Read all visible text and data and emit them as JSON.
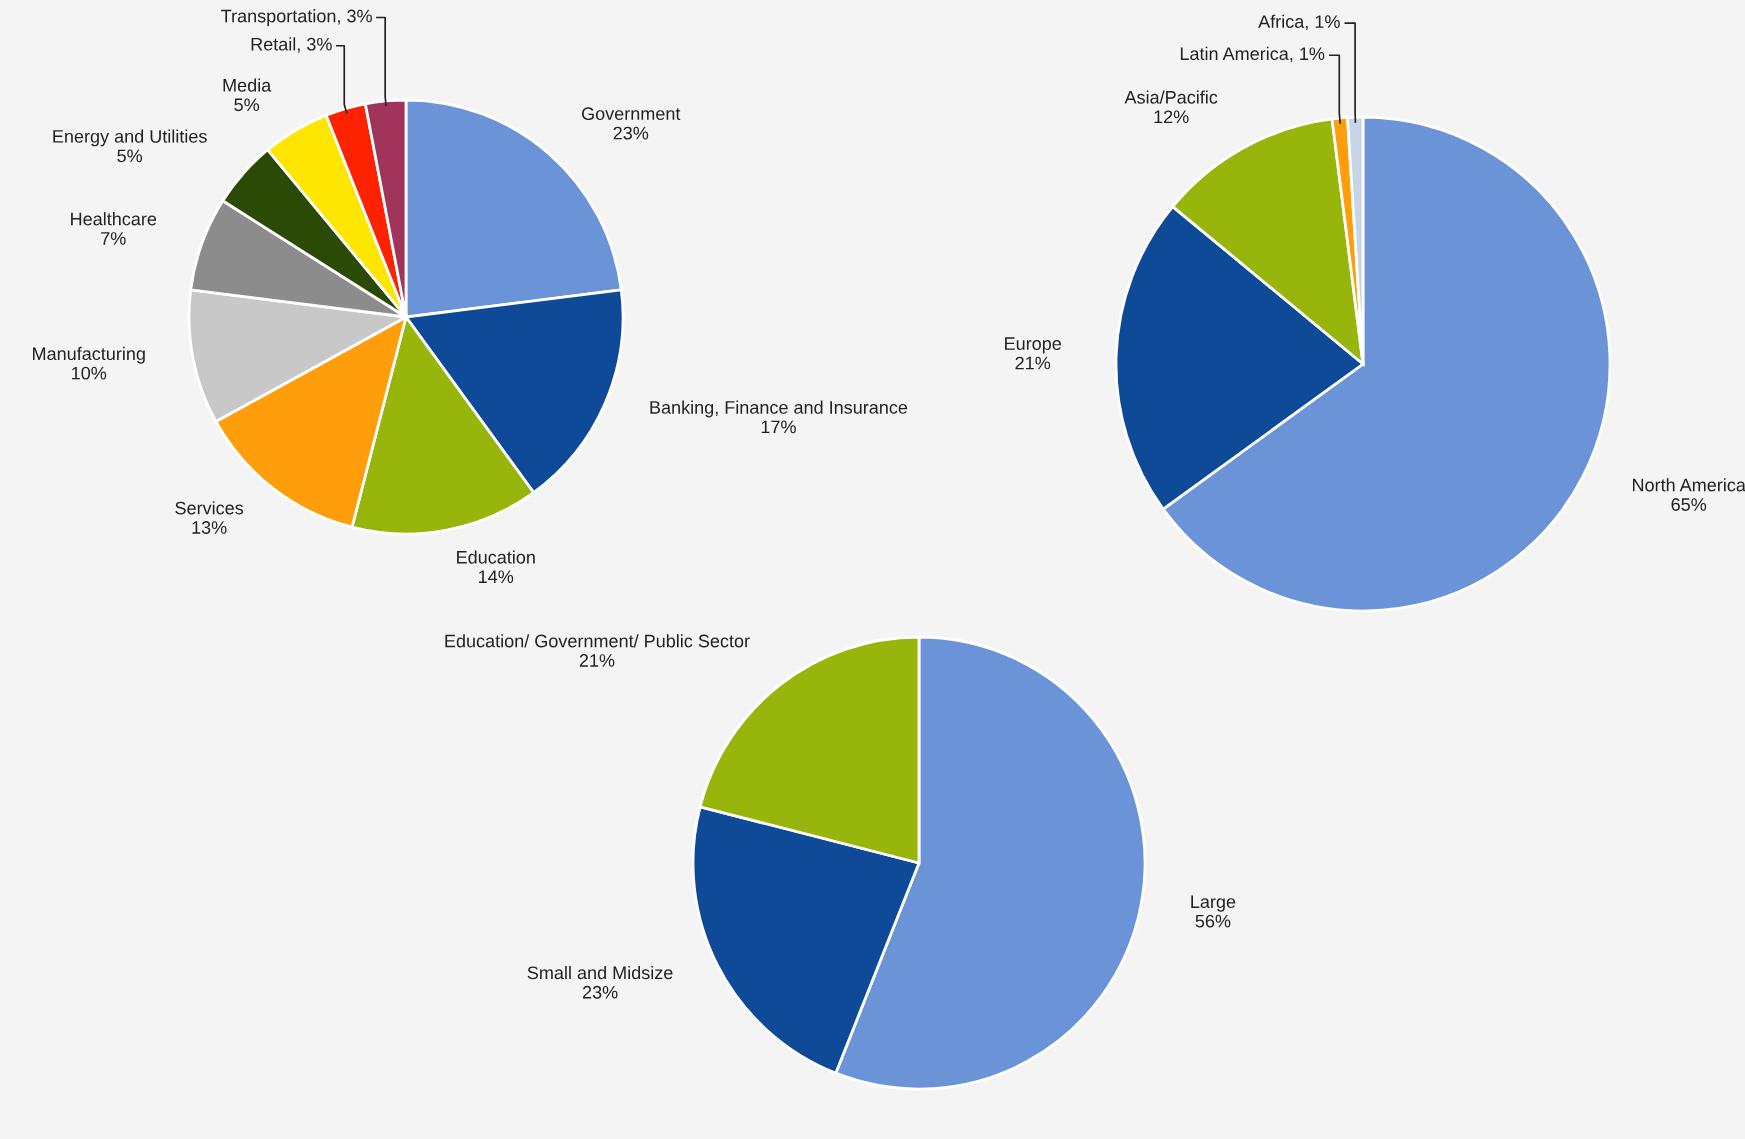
{
  "chart_data": [
    {
      "type": "pie",
      "categories": [
        "Government",
        "Banking, Finance and Insurance",
        "Education",
        "Services",
        "Manufacturing",
        "Healthcare",
        "Energy and Utilities",
        "Media",
        "Retail",
        "Transportation"
      ],
      "values": [
        23,
        17,
        14,
        13,
        10,
        7,
        5,
        5,
        3,
        3
      ],
      "value_labels": [
        "23%",
        "17%",
        "14%",
        "13%",
        "10%",
        "7%",
        "5%",
        "5%",
        "3%",
        "3%"
      ],
      "colors": [
        "#6a93d8",
        "#0e4a97",
        "#97b50a",
        "#ff9d0a",
        "#c8c8c8",
        "#8c8c8c",
        "#2b4a06",
        "#ffe600",
        "#ff2200",
        "#a0345a"
      ]
    },
    {
      "type": "pie",
      "categories": [
        "North America",
        "Europe",
        "Asia/Pacific",
        "Latin America",
        "Africa"
      ],
      "values": [
        65,
        21,
        12,
        1,
        1
      ],
      "value_labels": [
        "65%",
        "21%",
        "12%",
        "1%",
        "1%"
      ],
      "colors": [
        "#6a93d8",
        "#0e4a97",
        "#97b50a",
        "#ff9d0a",
        "#c8d4e8"
      ]
    },
    {
      "type": "pie",
      "categories": [
        "Large",
        "Small and Midsize",
        "Education/ Government/ Public Sector"
      ],
      "values": [
        56,
        23,
        21
      ],
      "value_labels": [
        "56%",
        "23%",
        "21%"
      ],
      "colors": [
        "#6a93d8",
        "#0e4a97",
        "#97b50a"
      ]
    }
  ]
}
